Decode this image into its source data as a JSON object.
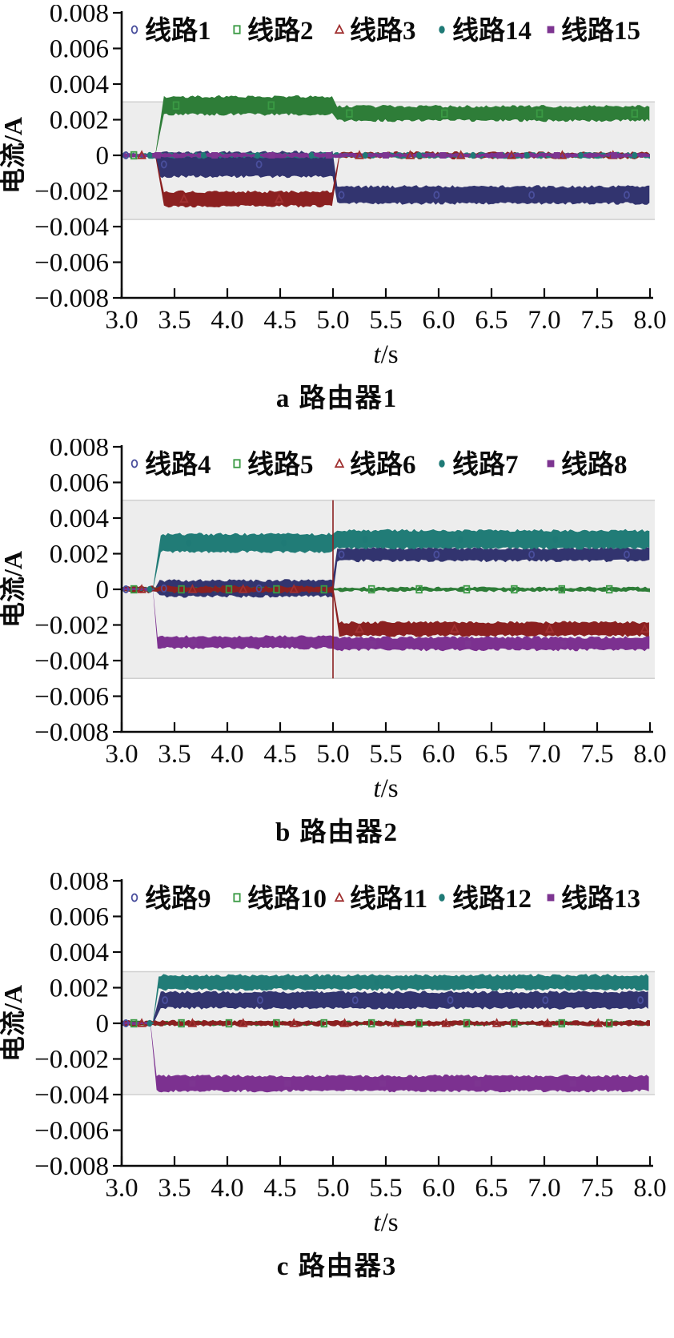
{
  "axis": {
    "ylabel": "电流/A",
    "xlabel": "t/s",
    "xlim": [
      3.0,
      8.0
    ],
    "ylim": [
      -0.008,
      0.008
    ],
    "grid": false,
    "legend_position": "top-inside",
    "xticks": [
      {
        "v": 3.0,
        "label": "3.0"
      },
      {
        "v": 3.5,
        "label": "3.5"
      },
      {
        "v": 4.0,
        "label": "4.0"
      },
      {
        "v": 4.5,
        "label": "4.5"
      },
      {
        "v": 5.0,
        "label": "5.0"
      },
      {
        "v": 5.5,
        "label": "5.5"
      },
      {
        "v": 6.0,
        "label": "6.0"
      },
      {
        "v": 6.5,
        "label": "6.5"
      },
      {
        "v": 7.0,
        "label": "7.0"
      },
      {
        "v": 7.5,
        "label": "7.5"
      },
      {
        "v": 8.0,
        "label": "8.0"
      }
    ],
    "yticks": [
      {
        "v": 0.008,
        "label": "0.008"
      },
      {
        "v": 0.006,
        "label": "0.006"
      },
      {
        "v": 0.004,
        "label": "0.004"
      },
      {
        "v": 0.002,
        "label": "0.002"
      },
      {
        "v": 0,
        "label": "0"
      },
      {
        "v": -0.002,
        "label": "−0.002"
      },
      {
        "v": -0.004,
        "label": "−0.004"
      },
      {
        "v": -0.006,
        "label": "−0.006"
      },
      {
        "v": -0.008,
        "label": "−0.008"
      }
    ]
  },
  "chart_data": [
    {
      "type": "line",
      "title": "a 路由器1",
      "caption": "a 路由器1",
      "shaded_band": {
        "ymin": -0.0036,
        "ymax": 0.003,
        "color": "#ededed"
      },
      "series": [
        {
          "name": "线路1",
          "marker": "open-ellipse",
          "color": "#32346f",
          "marker_color": "#4a4f9d",
          "segments": [
            {
              "t0": 3.0,
              "t1": 3.33,
              "lo": -6e-05,
              "hi": 6e-05
            },
            {
              "t0": 3.36,
              "t1": 5.0,
              "lo": -0.0012,
              "hi": 0.00018
            },
            {
              "t0": 5.04,
              "t1": 8.0,
              "lo": -0.0027,
              "hi": -0.00175
            }
          ]
        },
        {
          "name": "线路2",
          "marker": "open-square",
          "color": "#2e7d38",
          "marker_color": "#3a9a44",
          "segments": [
            {
              "t0": 3.0,
              "t1": 3.34,
              "lo": -6e-05,
              "hi": 6e-05
            },
            {
              "t0": 3.4,
              "t1": 5.0,
              "lo": 0.0023,
              "hi": 0.0033
            },
            {
              "t0": 5.04,
              "t1": 8.0,
              "lo": 0.00195,
              "hi": 0.00275
            }
          ]
        },
        {
          "name": "线路3",
          "marker": "open-triangle",
          "color": "#8b2020",
          "marker_color": "#a03030",
          "segments": [
            {
              "t0": 3.0,
              "t1": 3.34,
              "lo": -6e-05,
              "hi": 6e-05
            },
            {
              "t0": 3.4,
              "t1": 5.0,
              "lo": -0.00285,
              "hi": -0.00205
            },
            {
              "t0": 5.06,
              "t1": 8.0,
              "lo": -0.00015,
              "hi": 0.00015
            }
          ]
        },
        {
          "name": "线路14",
          "marker": "filled-ellipse",
          "color": "#217c77",
          "marker_color": "#1f7a76",
          "segments": [
            {
              "t0": 3.0,
              "t1": 8.0,
              "lo": -0.00012,
              "hi": 0.00012
            }
          ]
        },
        {
          "name": "线路15",
          "marker": "filled-square",
          "color": "#7c3190",
          "marker_color": "#7d3591",
          "segments": [
            {
              "t0": 3.0,
              "t1": 8.0,
              "lo": -0.0001,
              "hi": 0.0001
            }
          ]
        }
      ]
    },
    {
      "type": "line",
      "title": "b 路由器2",
      "caption": "b 路由器2",
      "shaded_band": {
        "ymin": -0.005,
        "ymax": 0.005,
        "color": "#ededed"
      },
      "vline": {
        "t": 5.0,
        "y0": -0.005,
        "y1": 0.005,
        "color": "#8b2121"
      },
      "series": [
        {
          "name": "线路4",
          "marker": "open-ellipse",
          "color": "#32346f",
          "marker_color": "#4a4f9d",
          "segments": [
            {
              "t0": 3.0,
              "t1": 3.33,
              "lo": -6e-05,
              "hi": 6e-05
            },
            {
              "t0": 3.36,
              "t1": 5.0,
              "lo": -0.0004,
              "hi": 0.0005
            },
            {
              "t0": 5.04,
              "t1": 8.0,
              "lo": 0.0016,
              "hi": 0.0023
            }
          ]
        },
        {
          "name": "线路5",
          "marker": "open-square",
          "color": "#2e7d38",
          "marker_color": "#3a9a44",
          "segments": [
            {
              "t0": 3.0,
              "t1": 8.0,
              "lo": -0.0001,
              "hi": 0.0001
            }
          ]
        },
        {
          "name": "线路6",
          "marker": "open-triangle",
          "color": "#8b2020",
          "marker_color": "#a03030",
          "segments": [
            {
              "t0": 3.0,
              "t1": 5.0,
              "lo": -0.00015,
              "hi": 0.00015
            },
            {
              "t0": 5.06,
              "t1": 8.0,
              "lo": -0.0026,
              "hi": -0.00185
            }
          ]
        },
        {
          "name": "线路7",
          "marker": "filled-ellipse",
          "color": "#217c77",
          "marker_color": "#1f7a76",
          "segments": [
            {
              "t0": 3.0,
              "t1": 3.31,
              "lo": -6e-05,
              "hi": 6e-05
            },
            {
              "t0": 3.37,
              "t1": 5.0,
              "lo": 0.0021,
              "hi": 0.0031
            },
            {
              "t0": 5.04,
              "t1": 8.0,
              "lo": 0.0023,
              "hi": 0.0033
            }
          ]
        },
        {
          "name": "线路8",
          "marker": "filled-square",
          "color": "#7c3190",
          "marker_color": "#7d3591",
          "segments": [
            {
              "t0": 3.0,
              "t1": 3.3,
              "lo": -6e-05,
              "hi": 6e-05
            },
            {
              "t0": 3.34,
              "t1": 5.0,
              "lo": -0.0033,
              "hi": -0.00265
            },
            {
              "t0": 5.04,
              "t1": 8.0,
              "lo": -0.0034,
              "hi": -0.0027
            }
          ]
        }
      ]
    },
    {
      "type": "line",
      "title": "c 路由器3",
      "caption": "c 路由器3",
      "shaded_band": {
        "ymin": -0.004,
        "ymax": 0.0029,
        "color": "#ededed"
      },
      "series": [
        {
          "name": "线路9",
          "marker": "open-ellipse",
          "color": "#32346f",
          "marker_color": "#4a4f9d",
          "segments": [
            {
              "t0": 3.0,
              "t1": 3.31,
              "lo": -6e-05,
              "hi": 6e-05
            },
            {
              "t0": 3.37,
              "t1": 8.0,
              "lo": 0.00085,
              "hi": 0.00175
            }
          ]
        },
        {
          "name": "线路10",
          "marker": "open-square",
          "color": "#2e7d38",
          "marker_color": "#3a9a44",
          "segments": [
            {
              "t0": 3.0,
              "t1": 8.0,
              "lo": -0.0001,
              "hi": 0.0001
            }
          ]
        },
        {
          "name": "线路11",
          "marker": "open-triangle",
          "color": "#8b2020",
          "marker_color": "#a03030",
          "segments": [
            {
              "t0": 3.0,
              "t1": 8.0,
              "lo": -0.00012,
              "hi": 0.00012
            }
          ]
        },
        {
          "name": "线路12",
          "marker": "filled-ellipse",
          "color": "#217c77",
          "marker_color": "#1f7a76",
          "segments": [
            {
              "t0": 3.0,
              "t1": 3.3,
              "lo": -6e-05,
              "hi": 6e-05
            },
            {
              "t0": 3.35,
              "t1": 8.0,
              "lo": 0.0019,
              "hi": 0.0027
            }
          ]
        },
        {
          "name": "线路13",
          "marker": "filled-square",
          "color": "#7c3190",
          "marker_color": "#7d3591",
          "segments": [
            {
              "t0": 3.0,
              "t1": 3.29,
              "lo": -6e-05,
              "hi": 6e-05
            },
            {
              "t0": 3.33,
              "t1": 8.0,
              "lo": -0.0038,
              "hi": -0.00295
            }
          ]
        }
      ]
    }
  ]
}
